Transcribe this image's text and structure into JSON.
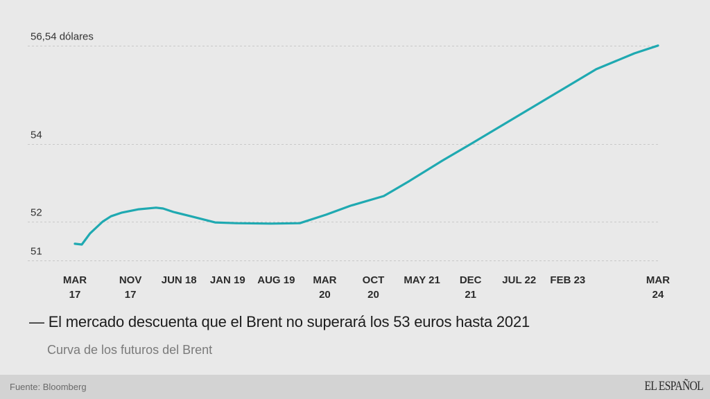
{
  "chart_data": {
    "type": "line",
    "title": "— El mercado descuenta que el Brent no superará los 53 euros hasta 2021",
    "subtitle": "Curva de los futuros del Brent",
    "xlabel": "",
    "ylabel": "",
    "y_unit_label": "dólares",
    "ylim": [
      51,
      56.54
    ],
    "grid": true,
    "legend": "none",
    "y_ticks": [
      {
        "value": 51,
        "label": "51"
      },
      {
        "value": 52,
        "label": "52"
      },
      {
        "value": 54,
        "label": "54"
      },
      {
        "value": 56.54,
        "label": "56,54 dólares"
      }
    ],
    "x_ticks": [
      {
        "month": 0,
        "lines": [
          "MAR",
          "17"
        ]
      },
      {
        "month": 8,
        "lines": [
          "NOV",
          "17"
        ]
      },
      {
        "month": 15,
        "lines": [
          "JUN 18"
        ]
      },
      {
        "month": 22,
        "lines": [
          "JAN 19"
        ]
      },
      {
        "month": 29,
        "lines": [
          "AUG 19"
        ]
      },
      {
        "month": 36,
        "lines": [
          "MAR",
          "20"
        ]
      },
      {
        "month": 43,
        "lines": [
          "OCT",
          "20"
        ]
      },
      {
        "month": 50,
        "lines": [
          "MAY 21"
        ]
      },
      {
        "month": 57,
        "lines": [
          "DEC",
          "21"
        ]
      },
      {
        "month": 64,
        "lines": [
          "JUL 22"
        ]
      },
      {
        "month": 71,
        "lines": [
          "FEB 23"
        ]
      },
      {
        "month": 84,
        "lines": [
          "MAR",
          "24"
        ]
      }
    ],
    "x_range_months": [
      0,
      84
    ],
    "x_origin": "MAR 17",
    "series": [
      {
        "name": "Curva de los futuros del Brent",
        "color": "#1fa9b1",
        "points": [
          [
            0,
            51.43
          ],
          [
            1,
            51.41
          ],
          [
            2.2,
            51.7
          ],
          [
            4,
            52.0
          ],
          [
            5.2,
            52.14
          ],
          [
            6.7,
            52.23
          ],
          [
            9.2,
            52.32
          ],
          [
            11.7,
            52.36
          ],
          [
            12.7,
            52.34
          ],
          [
            14.2,
            52.25
          ],
          [
            16.7,
            52.14
          ],
          [
            20.2,
            51.98
          ],
          [
            23.2,
            51.96
          ],
          [
            28.2,
            51.95
          ],
          [
            32.4,
            51.96
          ],
          [
            36.2,
            52.18
          ],
          [
            39.7,
            52.41
          ],
          [
            44.5,
            52.66
          ],
          [
            48.2,
            53.05
          ],
          [
            52.9,
            53.57
          ],
          [
            57.2,
            54.02
          ],
          [
            63.2,
            54.66
          ],
          [
            69.1,
            55.29
          ],
          [
            75.1,
            55.93
          ],
          [
            80.6,
            56.34
          ],
          [
            84,
            56.54
          ]
        ]
      }
    ]
  },
  "footer": {
    "source": "Fuente: Bloomberg",
    "brand": "EL ESPAÑOL"
  },
  "colors": {
    "background": "#e9e9e9",
    "footer_background": "#d3d3d3",
    "line": "#1fa9b1",
    "grid": "#c8c8c8"
  }
}
